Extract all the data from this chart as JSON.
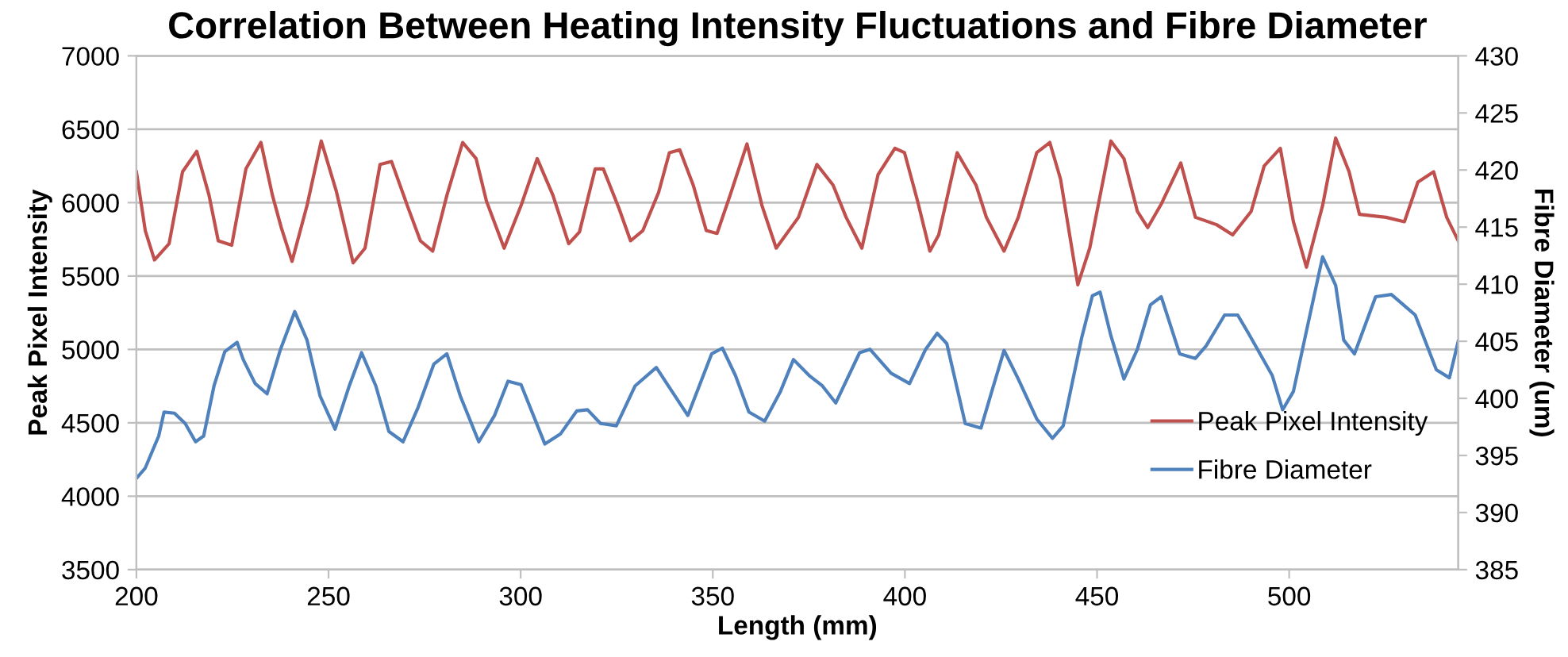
{
  "chart_data": {
    "type": "line",
    "title": "Correlation Between Heating Intensity Fluctuations and Fibre Diameter",
    "xlabel": "Length (mm)",
    "ylabel": "Peak Pixel Intensity",
    "y2label": "Fibre Diameter (um)",
    "xlim": [
      200,
      544
    ],
    "xticks": [
      200,
      250,
      300,
      350,
      400,
      450,
      500
    ],
    "ylim": [
      3500,
      7000
    ],
    "yticks": [
      3500,
      4000,
      4500,
      5000,
      5500,
      6000,
      6500,
      7000
    ],
    "y2lim": [
      385,
      430
    ],
    "y2ticks": [
      385,
      390,
      395,
      400,
      405,
      410,
      415,
      420,
      425,
      430
    ],
    "grid": "y",
    "legend": "bottom right",
    "marker": "none",
    "line_style": "solid",
    "series": [
      {
        "name": "Peak Pixel Intensity",
        "color": "#c0504d",
        "x": [
          200,
          202.3,
          204.7,
          208.5,
          212,
          215.7,
          218.9,
          221.3,
          224.8,
          228.5,
          232.4,
          235.4,
          237.7,
          240.5,
          244.4,
          248.1,
          252,
          256.4,
          259.5,
          263.4,
          266.4,
          270.5,
          273.9,
          277.1,
          280.8,
          284.9,
          288.4,
          291.1,
          295.7,
          300.1,
          304.3,
          308.4,
          312.5,
          315.3,
          319.4,
          321.5,
          325.6,
          328.6,
          331.8,
          335.9,
          338.7,
          341.4,
          344.9,
          348.3,
          351.1,
          354.5,
          358.9,
          362.8,
          366.5,
          372.3,
          377.1,
          381.3,
          384.7,
          388.8,
          393,
          397.4,
          399.9,
          403.3,
          406.5,
          408.8,
          413.6,
          418.5,
          421.2,
          425.8,
          429.5,
          434.3,
          437.7,
          440.5,
          445,
          448.1,
          453.6,
          457,
          460.5,
          463.2,
          466.7,
          471.8,
          475.6,
          481.1,
          485.3,
          490.1,
          493.5,
          497.7,
          501.1,
          504.5,
          508.7,
          512.1,
          515.6,
          518.3,
          525.2,
          530,
          533.5,
          537.6,
          541,
          544
        ],
        "values": [
          6210,
          5810,
          5610,
          5720,
          6210,
          6350,
          6050,
          5740,
          5710,
          6230,
          6410,
          6050,
          5830,
          5600,
          5980,
          6420,
          6080,
          5590,
          5690,
          6260,
          6280,
          5980,
          5740,
          5670,
          6050,
          6410,
          6300,
          6010,
          5690,
          5980,
          6300,
          6050,
          5720,
          5800,
          6230,
          6230,
          5960,
          5740,
          5810,
          6070,
          6340,
          6360,
          6120,
          5810,
          5790,
          6050,
          6400,
          5980,
          5690,
          5900,
          6260,
          6120,
          5900,
          5690,
          6190,
          6370,
          6340,
          6010,
          5670,
          5780,
          6340,
          6120,
          5900,
          5670,
          5900,
          6340,
          6410,
          6160,
          5440,
          5690,
          6420,
          6300,
          5940,
          5830,
          5990,
          6270,
          5900,
          5850,
          5780,
          5940,
          6250,
          6370,
          5870,
          5560,
          5980,
          6440,
          6210,
          5920,
          5900,
          5870,
          6140,
          6210,
          5900,
          5740
        ]
      },
      {
        "name": "Fibre Diameter",
        "color": "#4f81bd",
        "axis": "y2",
        "x": [
          200,
          202.3,
          205.8,
          207.2,
          209.9,
          212.7,
          215.4,
          217.5,
          220.2,
          223,
          226.2,
          227.8,
          230.9,
          234,
          237.5,
          241.2,
          244.4,
          247.8,
          251.7,
          255.4,
          258.6,
          262.3,
          265.7,
          269.4,
          273.3,
          277.4,
          280.8,
          284.3,
          289.1,
          293.2,
          296.7,
          300.1,
          306.3,
          310.4,
          314.6,
          317.4,
          320.8,
          324.9,
          329.8,
          335.3,
          339.4,
          343.5,
          349.7,
          352.5,
          355.9,
          359.4,
          363.5,
          367.6,
          371,
          375.1,
          378.5,
          382,
          388.2,
          390.9,
          396.4,
          401.2,
          405.4,
          408.4,
          410.9,
          415.7,
          419.8,
          422.6,
          425.8,
          429.5,
          434.3,
          438.4,
          441.2,
          446,
          448.8,
          450.8,
          453.6,
          457,
          460.5,
          463.9,
          466.7,
          471.5,
          475.6,
          478.4,
          483.2,
          486.6,
          489.4,
          495.6,
          498.3,
          501.1,
          504.5,
          508.7,
          512.1,
          514.2,
          517,
          522.5,
          526.6,
          532.8,
          538.3,
          541.7,
          544
        ],
        "values": [
          393.0,
          393.9,
          396.7,
          398.8,
          398.7,
          397.8,
          396.2,
          396.7,
          401.1,
          404.1,
          404.9,
          403.4,
          401.3,
          400.4,
          404.3,
          407.6,
          405.1,
          400.2,
          397.3,
          401.1,
          404.0,
          401.1,
          397.1,
          396.2,
          399.2,
          403.0,
          403.9,
          400.2,
          396.2,
          398.5,
          401.5,
          401.2,
          396.0,
          396.9,
          398.9,
          399.0,
          397.8,
          397.6,
          401.1,
          402.7,
          400.6,
          398.5,
          403.9,
          404.4,
          402.0,
          398.8,
          398.0,
          400.6,
          403.4,
          402.0,
          401.1,
          399.6,
          404.0,
          404.3,
          402.2,
          401.3,
          404.3,
          405.7,
          404.8,
          397.8,
          397.4,
          400.6,
          404.2,
          401.7,
          398.2,
          396.5,
          397.6,
          405.3,
          409.0,
          409.3,
          405.5,
          401.7,
          404.3,
          408.2,
          408.9,
          403.9,
          403.5,
          404.6,
          407.3,
          407.3,
          405.7,
          402.0,
          399.0,
          400.6,
          405.9,
          412.4,
          409.9,
          405.1,
          403.9,
          408.9,
          409.1,
          407.3,
          402.5,
          401.8,
          405.0
        ]
      }
    ]
  }
}
